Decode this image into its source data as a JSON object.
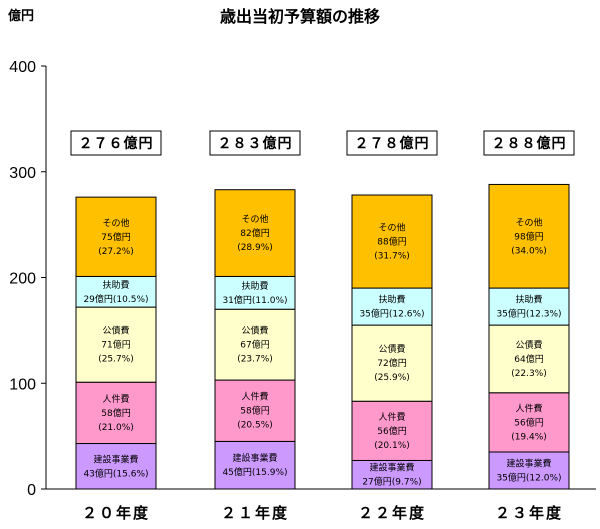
{
  "chart_data": {
    "type": "bar",
    "stacked": true,
    "title": "歳出当初予算額の推移",
    "ylabel": "億円",
    "xlabel": "",
    "ylim": [
      0,
      400
    ],
    "yticks": [
      "0",
      "100",
      "200",
      "300",
      "400"
    ],
    "grid": false,
    "legend": "none",
    "categories": [
      "２０年度",
      "２１年度",
      "２２年度",
      "２３年度"
    ],
    "totals": [
      "２７６億円",
      "２８３億円",
      "２７８億円",
      "２８８億円"
    ],
    "total_values": [
      276,
      283,
      278,
      288
    ],
    "series": [
      {
        "name": "建設事業費",
        "color": "#cc99ff",
        "values": [
          43,
          45,
          27,
          35
        ],
        "labels": [
          "43億円(15.6%)",
          "45億円(15.9%)",
          "27億円(9.7%)",
          "35億円(12.0%)"
        ],
        "inline": true
      },
      {
        "name": "人件費",
        "color": "#ff99cc",
        "values": [
          58,
          58,
          56,
          56
        ],
        "labels": [
          "58億円",
          "58億円",
          "56億円",
          "56億円"
        ],
        "pcts": [
          "(21.0%)",
          "(20.5%)",
          "(20.1%)",
          "(19.4%)"
        ],
        "inline": false
      },
      {
        "name": "公債費",
        "color": "#ffffcc",
        "values": [
          71,
          67,
          72,
          64
        ],
        "labels": [
          "71億円",
          "67億円",
          "72億円",
          "64億円"
        ],
        "pcts": [
          "(25.7%)",
          "(23.7%)",
          "(25.9%)",
          "(22.3%)"
        ],
        "inline": false
      },
      {
        "name": "扶助費",
        "color": "#ccffff",
        "values": [
          29,
          31,
          35,
          35
        ],
        "labels": [
          "29億円(10.5%)",
          "31億円(11.0%)",
          "35億円(12.6%)",
          "35億円(12.3%)"
        ],
        "inline": true
      },
      {
        "name": "その他",
        "color": "#ffc000",
        "values": [
          75,
          82,
          88,
          98
        ],
        "labels": [
          "75億円",
          "82億円",
          "88億円",
          "98億円"
        ],
        "pcts": [
          "(27.2%)",
          "(28.9%)",
          "(31.7%)",
          "(34.0%)"
        ],
        "inline": false
      }
    ]
  }
}
